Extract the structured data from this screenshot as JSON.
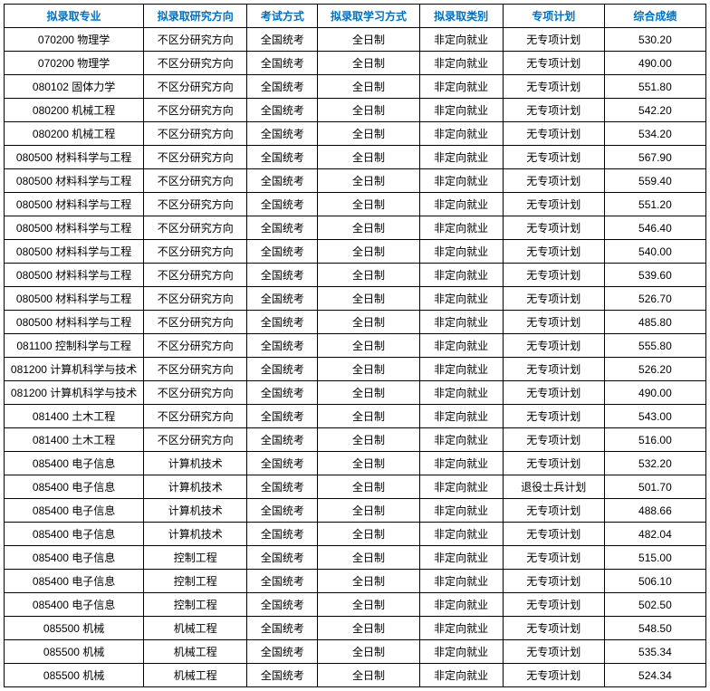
{
  "table": {
    "header_color": "#0070c0",
    "border_color": "#000000",
    "background_color": "#ffffff",
    "font_size": 12,
    "columns": [
      {
        "key": "major",
        "label": "拟录取专业",
        "width": 154
      },
      {
        "key": "direction",
        "label": "拟录取研究方向",
        "width": 114
      },
      {
        "key": "exam",
        "label": "考试方式",
        "width": 78
      },
      {
        "key": "study",
        "label": "拟录取学习方式",
        "width": 112
      },
      {
        "key": "category",
        "label": "拟录取类别",
        "width": 92
      },
      {
        "key": "plan",
        "label": "专项计划",
        "width": 112
      },
      {
        "key": "score",
        "label": "综合成绩",
        "width": 112
      }
    ],
    "rows": [
      {
        "major": "070200 物理学",
        "direction": "不区分研究方向",
        "exam": "全国统考",
        "study": "全日制",
        "category": "非定向就业",
        "plan": "无专项计划",
        "score": "530.20"
      },
      {
        "major": "070200 物理学",
        "direction": "不区分研究方向",
        "exam": "全国统考",
        "study": "全日制",
        "category": "非定向就业",
        "plan": "无专项计划",
        "score": "490.00"
      },
      {
        "major": "080102 固体力学",
        "direction": "不区分研究方向",
        "exam": "全国统考",
        "study": "全日制",
        "category": "非定向就业",
        "plan": "无专项计划",
        "score": "551.80"
      },
      {
        "major": "080200 机械工程",
        "direction": "不区分研究方向",
        "exam": "全国统考",
        "study": "全日制",
        "category": "非定向就业",
        "plan": "无专项计划",
        "score": "542.20"
      },
      {
        "major": "080200 机械工程",
        "direction": "不区分研究方向",
        "exam": "全国统考",
        "study": "全日制",
        "category": "非定向就业",
        "plan": "无专项计划",
        "score": "534.20"
      },
      {
        "major": "080500 材料科学与工程",
        "direction": "不区分研究方向",
        "exam": "全国统考",
        "study": "全日制",
        "category": "非定向就业",
        "plan": "无专项计划",
        "score": "567.90"
      },
      {
        "major": "080500 材料科学与工程",
        "direction": "不区分研究方向",
        "exam": "全国统考",
        "study": "全日制",
        "category": "非定向就业",
        "plan": "无专项计划",
        "score": "559.40"
      },
      {
        "major": "080500 材料科学与工程",
        "direction": "不区分研究方向",
        "exam": "全国统考",
        "study": "全日制",
        "category": "非定向就业",
        "plan": "无专项计划",
        "score": "551.20"
      },
      {
        "major": "080500 材料科学与工程",
        "direction": "不区分研究方向",
        "exam": "全国统考",
        "study": "全日制",
        "category": "非定向就业",
        "plan": "无专项计划",
        "score": "546.40"
      },
      {
        "major": "080500 材料科学与工程",
        "direction": "不区分研究方向",
        "exam": "全国统考",
        "study": "全日制",
        "category": "非定向就业",
        "plan": "无专项计划",
        "score": "540.00"
      },
      {
        "major": "080500 材料科学与工程",
        "direction": "不区分研究方向",
        "exam": "全国统考",
        "study": "全日制",
        "category": "非定向就业",
        "plan": "无专项计划",
        "score": "539.60"
      },
      {
        "major": "080500 材料科学与工程",
        "direction": "不区分研究方向",
        "exam": "全国统考",
        "study": "全日制",
        "category": "非定向就业",
        "plan": "无专项计划",
        "score": "526.70"
      },
      {
        "major": "080500 材料科学与工程",
        "direction": "不区分研究方向",
        "exam": "全国统考",
        "study": "全日制",
        "category": "非定向就业",
        "plan": "无专项计划",
        "score": "485.80"
      },
      {
        "major": "081100 控制科学与工程",
        "direction": "不区分研究方向",
        "exam": "全国统考",
        "study": "全日制",
        "category": "非定向就业",
        "plan": "无专项计划",
        "score": "555.80"
      },
      {
        "major": "081200 计算机科学与技术",
        "direction": "不区分研究方向",
        "exam": "全国统考",
        "study": "全日制",
        "category": "非定向就业",
        "plan": "无专项计划",
        "score": "526.20"
      },
      {
        "major": "081200 计算机科学与技术",
        "direction": "不区分研究方向",
        "exam": "全国统考",
        "study": "全日制",
        "category": "非定向就业",
        "plan": "无专项计划",
        "score": "490.00"
      },
      {
        "major": "081400 土木工程",
        "direction": "不区分研究方向",
        "exam": "全国统考",
        "study": "全日制",
        "category": "非定向就业",
        "plan": "无专项计划",
        "score": "543.00"
      },
      {
        "major": "081400 土木工程",
        "direction": "不区分研究方向",
        "exam": "全国统考",
        "study": "全日制",
        "category": "非定向就业",
        "plan": "无专项计划",
        "score": "516.00"
      },
      {
        "major": "085400 电子信息",
        "direction": "计算机技术",
        "exam": "全国统考",
        "study": "全日制",
        "category": "非定向就业",
        "plan": "无专项计划",
        "score": "532.20"
      },
      {
        "major": "085400 电子信息",
        "direction": "计算机技术",
        "exam": "全国统考",
        "study": "全日制",
        "category": "非定向就业",
        "plan": "退役士兵计划",
        "score": "501.70"
      },
      {
        "major": "085400 电子信息",
        "direction": "计算机技术",
        "exam": "全国统考",
        "study": "全日制",
        "category": "非定向就业",
        "plan": "无专项计划",
        "score": "488.66"
      },
      {
        "major": "085400 电子信息",
        "direction": "计算机技术",
        "exam": "全国统考",
        "study": "全日制",
        "category": "非定向就业",
        "plan": "无专项计划",
        "score": "482.04"
      },
      {
        "major": "085400 电子信息",
        "direction": "控制工程",
        "exam": "全国统考",
        "study": "全日制",
        "category": "非定向就业",
        "plan": "无专项计划",
        "score": "515.00"
      },
      {
        "major": "085400 电子信息",
        "direction": "控制工程",
        "exam": "全国统考",
        "study": "全日制",
        "category": "非定向就业",
        "plan": "无专项计划",
        "score": "506.10"
      },
      {
        "major": "085400 电子信息",
        "direction": "控制工程",
        "exam": "全国统考",
        "study": "全日制",
        "category": "非定向就业",
        "plan": "无专项计划",
        "score": "502.50"
      },
      {
        "major": "085500 机械",
        "direction": "机械工程",
        "exam": "全国统考",
        "study": "全日制",
        "category": "非定向就业",
        "plan": "无专项计划",
        "score": "548.50"
      },
      {
        "major": "085500 机械",
        "direction": "机械工程",
        "exam": "全国统考",
        "study": "全日制",
        "category": "非定向就业",
        "plan": "无专项计划",
        "score": "535.34"
      },
      {
        "major": "085500 机械",
        "direction": "机械工程",
        "exam": "全国统考",
        "study": "全日制",
        "category": "非定向就业",
        "plan": "无专项计划",
        "score": "524.34"
      }
    ]
  }
}
